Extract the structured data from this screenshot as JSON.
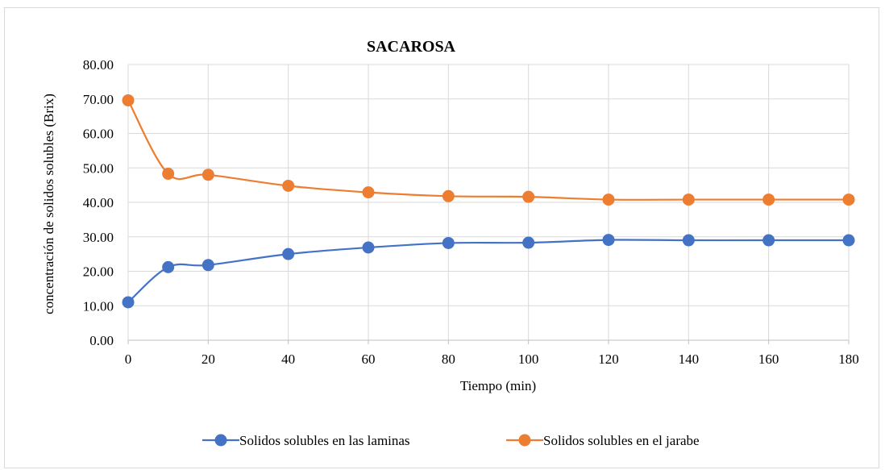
{
  "chart_data": {
    "type": "line",
    "title": "SACAROSA",
    "xlabel": "Tiempo (min)",
    "ylabel": "concentración de solidos solubles  (Brix)",
    "x": [
      0,
      10,
      20,
      40,
      60,
      80,
      100,
      120,
      140,
      160,
      180
    ],
    "x_ticks": [
      "0",
      "20",
      "40",
      "60",
      "80",
      "100",
      "120",
      "140",
      "160",
      "180"
    ],
    "y_ticks": [
      "0.00",
      "10.00",
      "20.00",
      "30.00",
      "40.00",
      "50.00",
      "60.00",
      "70.00",
      "80.00"
    ],
    "xlim": [
      0,
      180
    ],
    "ylim": [
      0,
      80
    ],
    "grid": true,
    "legend_position": "bottom",
    "series": [
      {
        "name": "Solidos solubles en las laminas",
        "color": "#4472c4",
        "values": [
          11.0,
          21.2,
          21.8,
          25.0,
          26.9,
          28.2,
          28.3,
          29.1,
          29.0,
          29.0,
          29.0
        ]
      },
      {
        "name": "Solidos solubles en el jarabe",
        "color": "#ed7d31",
        "values": [
          69.6,
          48.3,
          48.0,
          44.8,
          42.9,
          41.8,
          41.6,
          40.8,
          40.8,
          40.8,
          40.8
        ]
      }
    ]
  }
}
